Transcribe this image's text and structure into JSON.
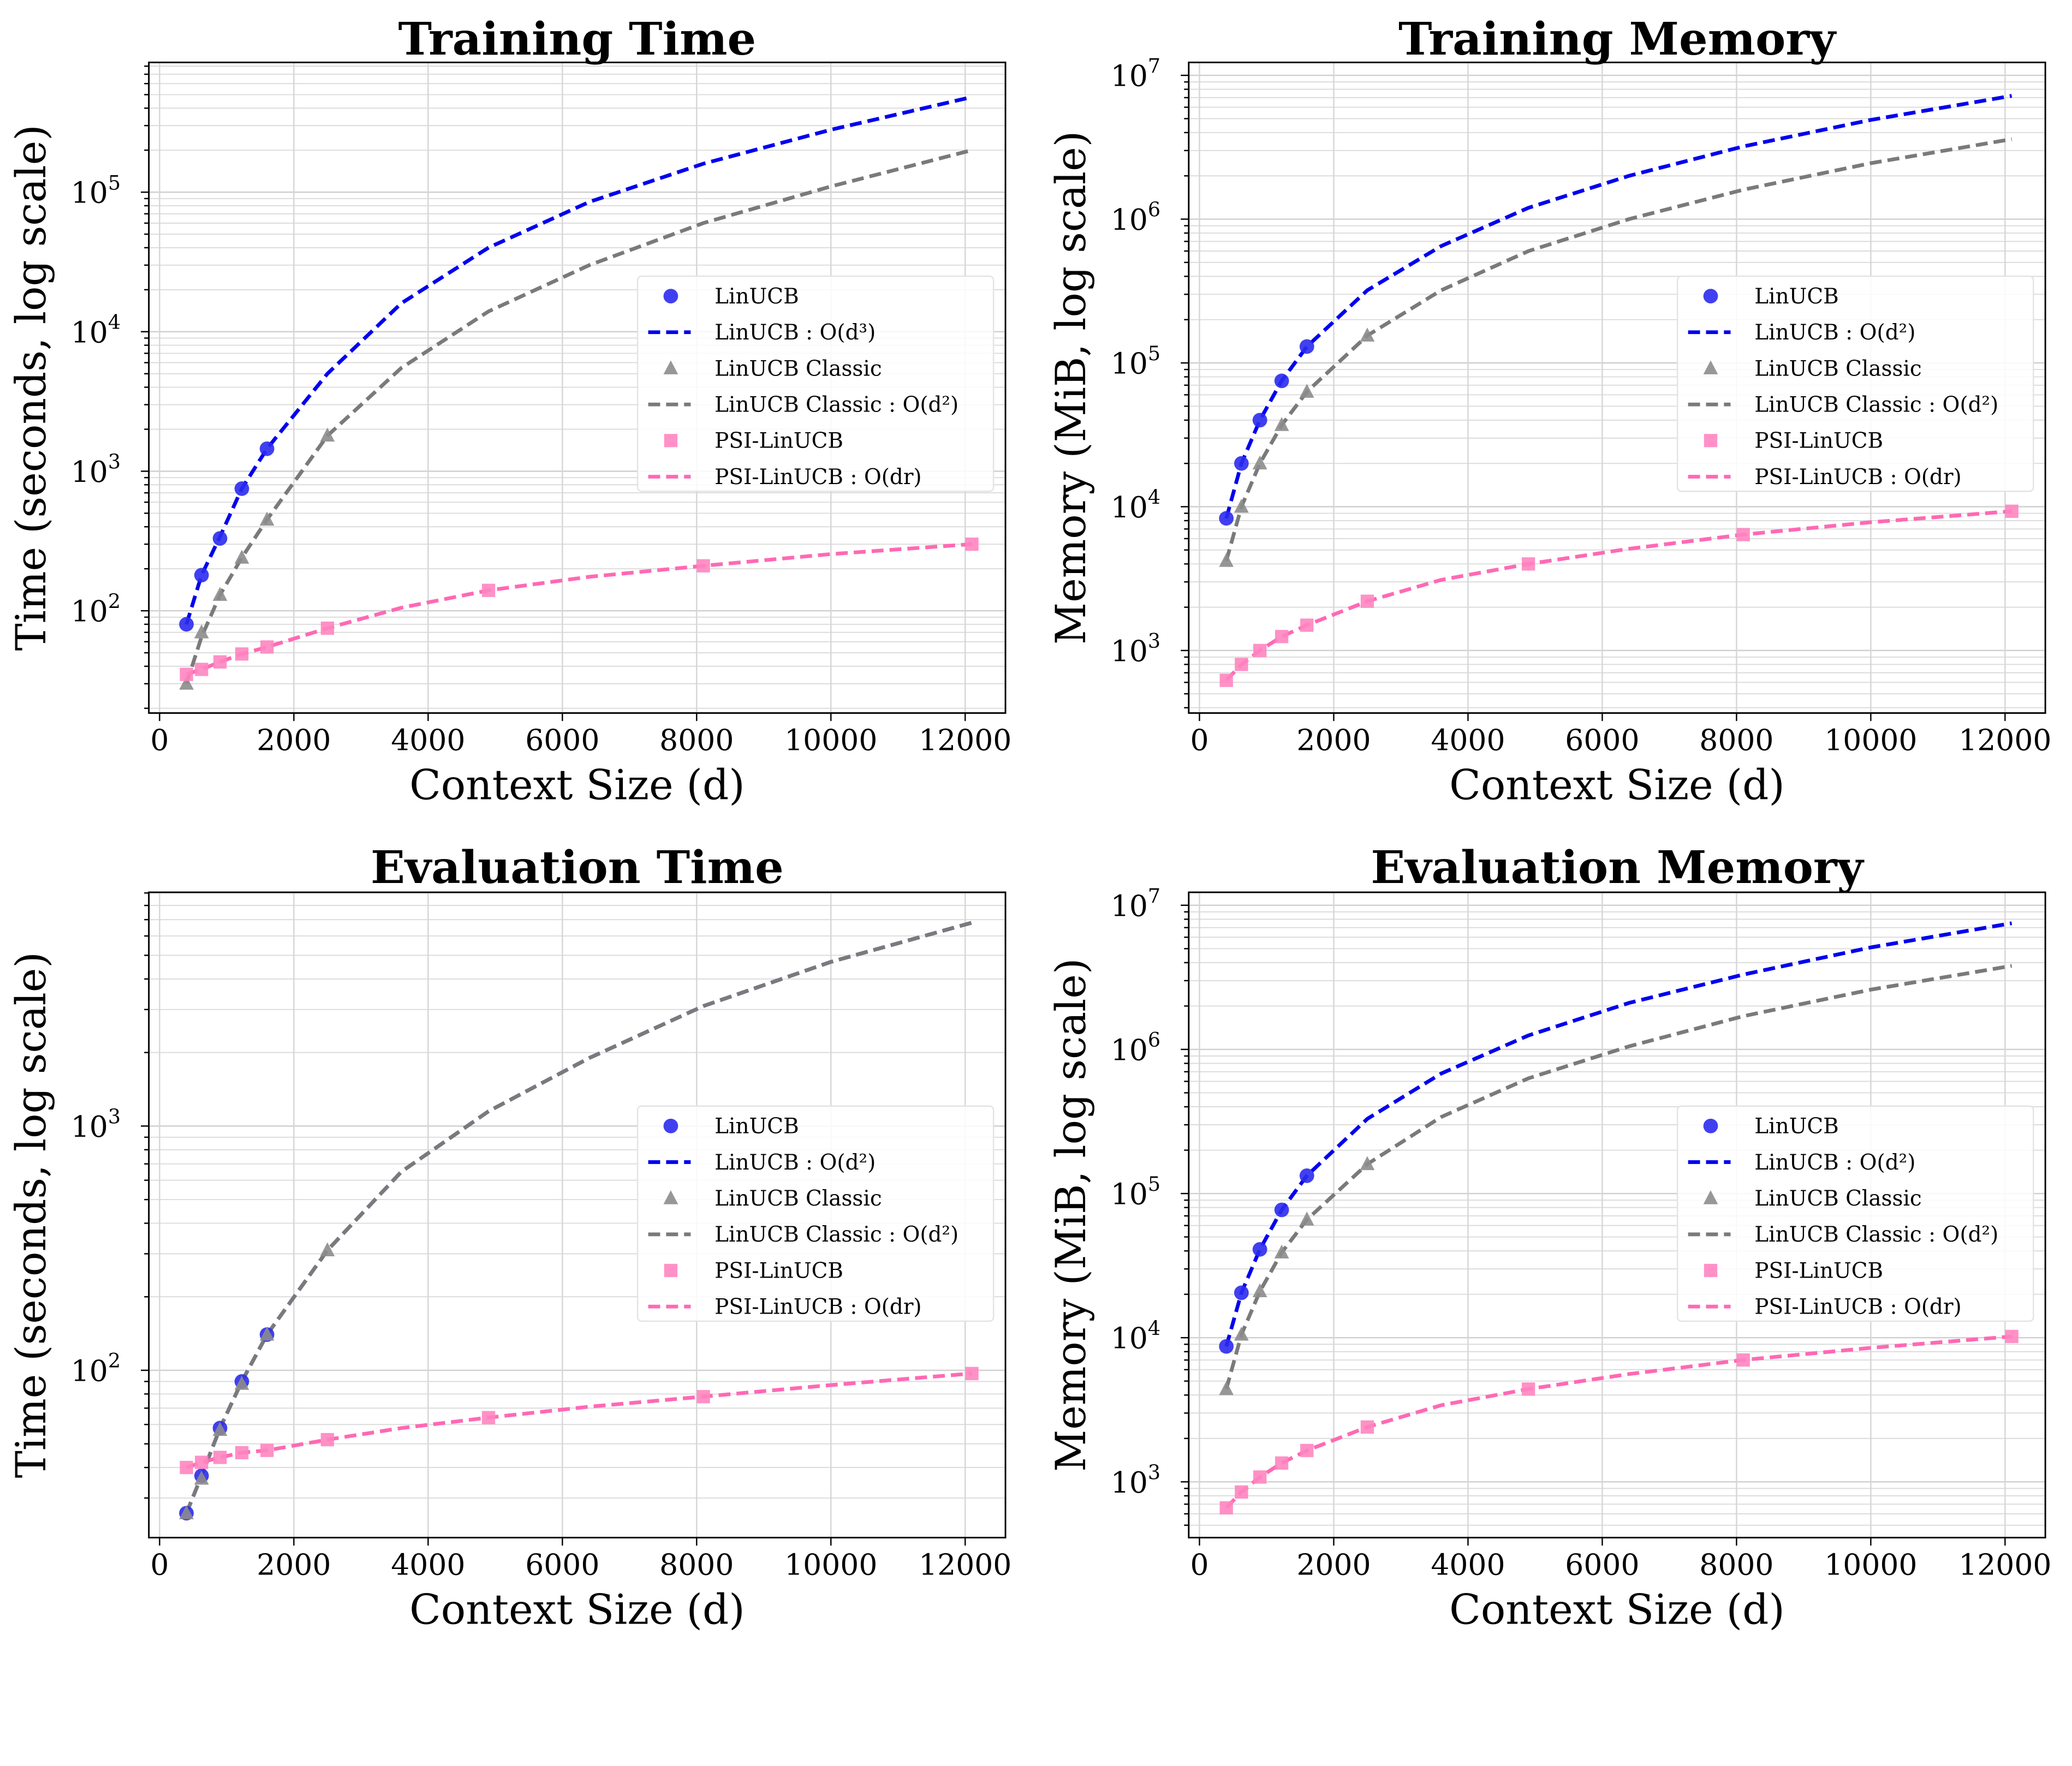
{
  "colors": {
    "linucb": "#0000ee",
    "linucb_marker": "#2b2bee",
    "classic": "#7a7a7a",
    "classic_marker": "#8c8c8c",
    "psi": "#ff69b4",
    "psi_marker": "#ff85c0"
  },
  "chart_data": [
    {
      "type": "line",
      "title": "Training Time",
      "xlabel": "Context Size (d)",
      "ylabel": "Time (seconds, log scale)",
      "yscale": "log",
      "xlim": [
        -160,
        12600
      ],
      "ylim_log10": [
        1.267,
        5.93
      ],
      "xticks": [
        "0",
        "2000",
        "4000",
        "6000",
        "8000",
        "10000",
        "12000"
      ],
      "yticks_exp": [
        2,
        3,
        4,
        5
      ],
      "legend_position": "center-right",
      "points_x": [
        400,
        625,
        900,
        1225,
        1600,
        2500,
        4900,
        8100,
        12100
      ],
      "curve_x": [
        400,
        625,
        900,
        1225,
        1600,
        2500,
        3600,
        4900,
        6400,
        8100,
        10000,
        12100
      ],
      "series": [
        {
          "name": "LinUCB",
          "kind": "marker",
          "marker": "circle",
          "color_key": "linucb_marker",
          "values": [
            80,
            180,
            330,
            750,
            1450
          ]
        },
        {
          "name": "LinUCB : O(d³)",
          "kind": "line",
          "color_key": "linucb",
          "values": [
            80,
            180,
            340,
            750,
            1450,
            5000,
            16000,
            40000,
            85000,
            160000,
            280000,
            480000
          ]
        },
        {
          "name": "LinUCB Classic",
          "kind": "marker",
          "marker": "triangle",
          "color_key": "classic_marker",
          "values": [
            30,
            70,
            130,
            240,
            450,
            1800
          ]
        },
        {
          "name": "LinUCB Classic : O(d²)",
          "kind": "line",
          "color_key": "classic",
          "values": [
            30,
            65,
            130,
            240,
            450,
            1800,
            5500,
            14000,
            30000,
            60000,
            110000,
            200000
          ]
        },
        {
          "name": "PSI-LinUCB",
          "kind": "marker",
          "marker": "square",
          "color_key": "psi_marker",
          "values": [
            35,
            38,
            43,
            49,
            55,
            75,
            140,
            210,
            300
          ]
        },
        {
          "name": "PSI-LinUCB : O(dr)",
          "kind": "line",
          "color_key": "psi",
          "values": [
            35,
            38,
            43,
            49,
            55,
            75,
            105,
            140,
            175,
            210,
            255,
            300
          ]
        }
      ]
    },
    {
      "type": "line",
      "title": "Training Memory",
      "xlabel": "Context Size (d)",
      "ylabel": "Memory (MiB, log scale)",
      "yscale": "log",
      "xlim": [
        -160,
        12600
      ],
      "ylim_log10": [
        2.565,
        7.09
      ],
      "xticks": [
        "0",
        "2000",
        "4000",
        "6000",
        "8000",
        "10000",
        "12000"
      ],
      "yticks_exp": [
        3,
        4,
        5,
        6,
        7
      ],
      "legend_position": "center-right",
      "points_x": [
        400,
        625,
        900,
        1225,
        1600,
        2500,
        4900,
        8100,
        12100
      ],
      "curve_x": [
        400,
        625,
        900,
        1225,
        1600,
        2500,
        3600,
        4900,
        6400,
        8100,
        10000,
        12100
      ],
      "series": [
        {
          "name": "LinUCB",
          "kind": "marker",
          "marker": "circle",
          "color_key": "linucb_marker",
          "values": [
            8300,
            20000,
            40000,
            75000,
            130000
          ]
        },
        {
          "name": "LinUCB : O(d²)",
          "kind": "line",
          "color_key": "linucb",
          "values": [
            8300,
            20000,
            40000,
            75000,
            130000,
            320000,
            650000,
            1200000,
            2000000,
            3200000,
            4900000,
            7200000
          ]
        },
        {
          "name": "LinUCB Classic",
          "kind": "marker",
          "marker": "triangle",
          "color_key": "classic_marker",
          "values": [
            4200,
            10000,
            20000,
            37000,
            63000,
            155000
          ]
        },
        {
          "name": "LinUCB Classic : O(d²)",
          "kind": "line",
          "color_key": "classic",
          "values": [
            4200,
            10000,
            20000,
            37000,
            63000,
            155000,
            320000,
            600000,
            1000000,
            1600000,
            2450000,
            3600000
          ]
        },
        {
          "name": "PSI-LinUCB",
          "kind": "marker",
          "marker": "square",
          "color_key": "psi_marker",
          "values": [
            620,
            800,
            1000,
            1250,
            1500,
            2200,
            4000,
            6400,
            9300
          ]
        },
        {
          "name": "PSI-LinUCB : O(dr)",
          "kind": "line",
          "color_key": "psi",
          "values": [
            620,
            800,
            1000,
            1250,
            1500,
            2200,
            3100,
            4000,
            5100,
            6400,
            7800,
            9300
          ]
        }
      ]
    },
    {
      "type": "line",
      "title": "Evaluation Time",
      "xlabel": "Context Size (d)",
      "ylabel": "Time (seconds, log scale)",
      "yscale": "log",
      "xlim": [
        -160,
        12600
      ],
      "ylim_log10": [
        1.315,
        3.957
      ],
      "xticks": [
        "0",
        "2000",
        "4000",
        "6000",
        "8000",
        "10000",
        "12000"
      ],
      "yticks_exp": [
        2,
        3
      ],
      "legend_position": "center-right",
      "points_x": [
        400,
        625,
        900,
        1225,
        1600,
        2500,
        4900,
        8100,
        12100
      ],
      "curve_x": [
        400,
        625,
        900,
        1225,
        1600,
        2500,
        3600,
        4900,
        6400,
        8100,
        10000,
        12100
      ],
      "series": [
        {
          "name": "LinUCB",
          "kind": "marker",
          "marker": "circle",
          "color_key": "linucb_marker",
          "values": [
            26,
            37,
            58,
            90,
            140
          ]
        },
        {
          "name": "LinUCB : O(d²)",
          "kind": "line",
          "color_key": "linucb",
          "values": [
            26,
            37,
            58,
            90,
            140,
            310,
            650,
            1150,
            1900,
            3100,
            4700,
            6800
          ]
        },
        {
          "name": "LinUCB Classic",
          "kind": "marker",
          "marker": "triangle",
          "color_key": "classic_marker",
          "values": [
            26,
            36,
            57,
            88,
            140,
            310
          ]
        },
        {
          "name": "LinUCB Classic : O(d²)",
          "kind": "line",
          "color_key": "classic",
          "values": [
            26,
            37,
            58,
            90,
            140,
            310,
            650,
            1150,
            1900,
            3100,
            4700,
            6800
          ]
        },
        {
          "name": "PSI-LinUCB",
          "kind": "marker",
          "marker": "square",
          "color_key": "psi_marker",
          "values": [
            40,
            42,
            44,
            46,
            47,
            52,
            64,
            78,
            97
          ]
        },
        {
          "name": "PSI-LinUCB : O(dr)",
          "kind": "line",
          "color_key": "psi",
          "values": [
            40,
            42,
            44,
            46,
            47,
            52,
            58,
            64,
            71,
            78,
            87,
            97
          ]
        }
      ]
    },
    {
      "type": "line",
      "title": "Evaluation Memory",
      "xlabel": "Context Size (d)",
      "ylabel": "Memory (MiB, log scale)",
      "yscale": "log",
      "xlim": [
        -160,
        12600
      ],
      "ylim_log10": [
        2.613,
        7.09
      ],
      "xticks": [
        "0",
        "2000",
        "4000",
        "6000",
        "8000",
        "10000",
        "12000"
      ],
      "yticks_exp": [
        3,
        4,
        5,
        6,
        7
      ],
      "legend_position": "center-right",
      "points_x": [
        400,
        625,
        900,
        1225,
        1600,
        2500,
        4900,
        8100,
        12100
      ],
      "curve_x": [
        400,
        625,
        900,
        1225,
        1600,
        2500,
        3600,
        4900,
        6400,
        8100,
        10000,
        12100
      ],
      "series": [
        {
          "name": "LinUCB",
          "kind": "marker",
          "marker": "circle",
          "color_key": "linucb_marker",
          "values": [
            8700,
            20500,
            41000,
            77000,
            133000
          ]
        },
        {
          "name": "LinUCB : O(d²)",
          "kind": "line",
          "color_key": "linucb",
          "values": [
            8700,
            20500,
            41000,
            77000,
            133000,
            330000,
            680000,
            1250000,
            2100000,
            3300000,
            5100000,
            7500000
          ]
        },
        {
          "name": "LinUCB Classic",
          "kind": "marker",
          "marker": "triangle",
          "color_key": "classic_marker",
          "values": [
            4400,
            10500,
            21000,
            39000,
            66000,
            160000
          ]
        },
        {
          "name": "LinUCB Classic : O(d²)",
          "kind": "line",
          "color_key": "classic",
          "values": [
            4400,
            10500,
            21000,
            39000,
            66000,
            160000,
            340000,
            630000,
            1050000,
            1700000,
            2600000,
            3800000
          ]
        },
        {
          "name": "PSI-LinUCB",
          "kind": "marker",
          "marker": "square",
          "color_key": "psi_marker",
          "values": [
            660,
            850,
            1080,
            1350,
            1650,
            2400,
            4400,
            7000,
            10200
          ]
        },
        {
          "name": "PSI-LinUCB : O(dr)",
          "kind": "line",
          "color_key": "psi",
          "values": [
            660,
            850,
            1080,
            1350,
            1650,
            2400,
            3400,
            4400,
            5600,
            7000,
            8500,
            10200
          ]
        }
      ]
    }
  ]
}
